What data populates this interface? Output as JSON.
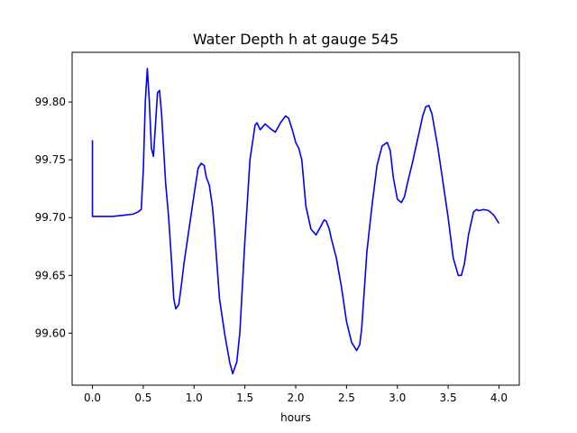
{
  "chart_data": {
    "type": "line",
    "title": "Water Depth h at gauge 545",
    "xlabel": "hours",
    "ylabel": "",
    "xlim": [
      -0.2,
      4.2
    ],
    "ylim": [
      99.555,
      99.843
    ],
    "x_ticks": [
      0.0,
      0.5,
      1.0,
      1.5,
      2.0,
      2.5,
      3.0,
      3.5,
      4.0
    ],
    "x_tick_labels": [
      "0.0",
      "0.5",
      "1.0",
      "1.5",
      "2.0",
      "2.5",
      "3.0",
      "3.5",
      "4.0"
    ],
    "y_ticks": [
      99.6,
      99.65,
      99.7,
      99.75,
      99.8
    ],
    "y_tick_labels": [
      "99.60",
      "99.65",
      "99.70",
      "99.75",
      "99.80"
    ],
    "grid": false,
    "legend": "none",
    "series": [
      {
        "color": "#0000ff",
        "x": [
          0.0,
          0.0,
          0.02,
          0.1,
          0.2,
          0.3,
          0.4,
          0.45,
          0.48,
          0.5,
          0.52,
          0.54,
          0.56,
          0.58,
          0.6,
          0.62,
          0.64,
          0.66,
          0.68,
          0.7,
          0.72,
          0.75,
          0.78,
          0.8,
          0.82,
          0.85,
          0.88,
          0.9,
          0.95,
          1.0,
          1.04,
          1.07,
          1.1,
          1.12,
          1.15,
          1.18,
          1.2,
          1.25,
          1.3,
          1.35,
          1.38,
          1.42,
          1.45,
          1.5,
          1.55,
          1.6,
          1.62,
          1.65,
          1.7,
          1.75,
          1.8,
          1.85,
          1.9,
          1.93,
          1.97,
          2.0,
          2.03,
          2.06,
          2.1,
          2.15,
          2.2,
          2.25,
          2.28,
          2.3,
          2.33,
          2.35,
          2.4,
          2.45,
          2.5,
          2.55,
          2.6,
          2.63,
          2.65,
          2.7,
          2.75,
          2.8,
          2.85,
          2.9,
          2.93,
          2.96,
          3.0,
          3.04,
          3.07,
          3.1,
          3.15,
          3.2,
          3.25,
          3.28,
          3.31,
          3.34,
          3.37,
          3.4,
          3.45,
          3.5,
          3.55,
          3.6,
          3.63,
          3.66,
          3.7,
          3.75,
          3.78,
          3.8,
          3.85,
          3.9,
          3.95,
          4.0
        ],
        "y": [
          99.767,
          99.701,
          99.701,
          99.701,
          99.701,
          99.702,
          99.703,
          99.705,
          99.707,
          99.74,
          99.8,
          99.829,
          99.8,
          99.76,
          99.753,
          99.78,
          99.808,
          99.81,
          99.79,
          99.76,
          99.73,
          99.7,
          99.66,
          99.63,
          99.621,
          99.625,
          99.645,
          99.66,
          99.69,
          99.72,
          99.743,
          99.747,
          99.745,
          99.735,
          99.728,
          99.71,
          99.69,
          99.63,
          99.6,
          99.575,
          99.565,
          99.575,
          99.6,
          99.68,
          99.75,
          99.78,
          99.782,
          99.776,
          99.781,
          99.777,
          99.774,
          99.782,
          99.788,
          99.786,
          99.775,
          99.765,
          99.76,
          99.75,
          99.71,
          99.69,
          99.685,
          99.693,
          99.698,
          99.697,
          99.69,
          99.682,
          99.665,
          99.64,
          99.61,
          99.592,
          99.585,
          99.59,
          99.605,
          99.67,
          99.71,
          99.745,
          99.762,
          99.765,
          99.758,
          99.735,
          99.716,
          99.713,
          99.718,
          99.73,
          99.748,
          99.768,
          99.788,
          99.796,
          99.797,
          99.79,
          99.775,
          99.76,
          99.73,
          99.7,
          99.665,
          99.65,
          99.65,
          99.66,
          99.685,
          99.705,
          99.707,
          99.706,
          99.707,
          99.706,
          99.702,
          99.695
        ]
      }
    ]
  }
}
